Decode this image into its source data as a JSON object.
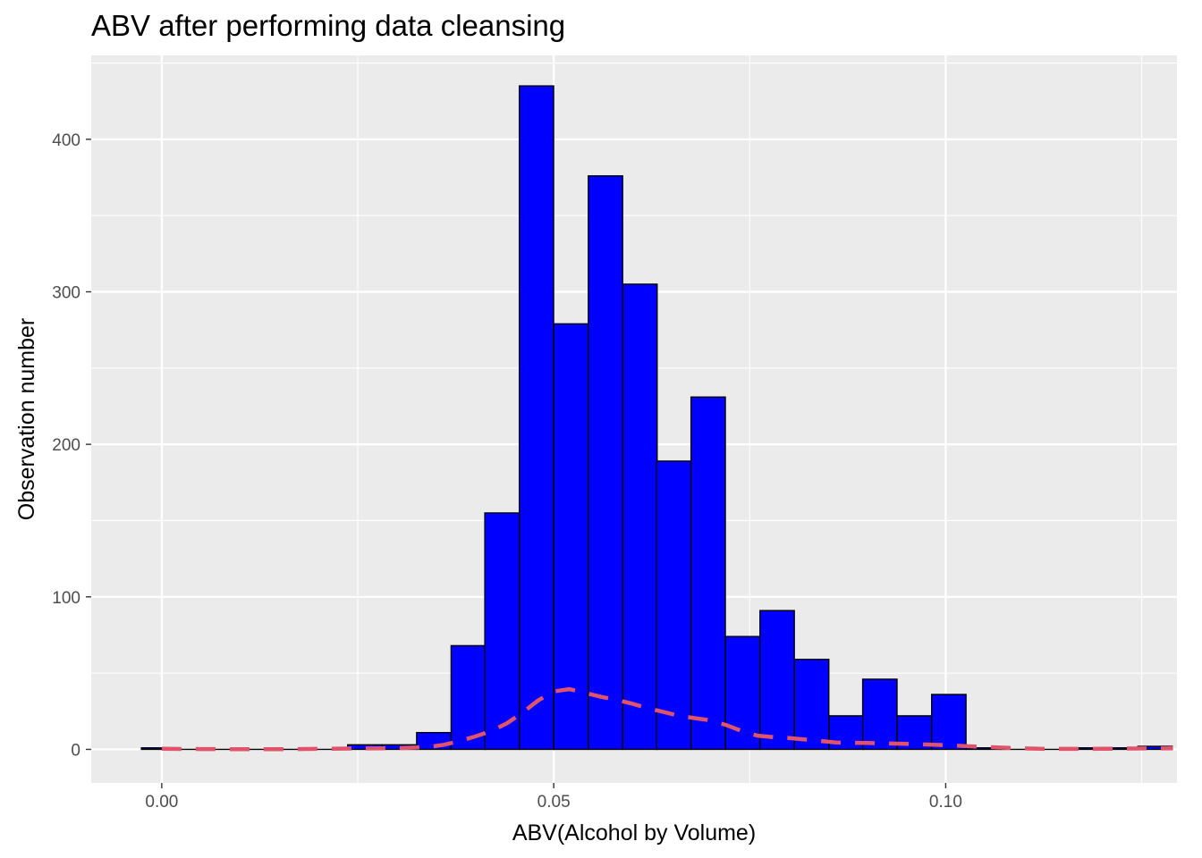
{
  "chart_data": {
    "type": "bar",
    "title": "ABV after performing data cleansing",
    "xlabel": "ABV(Alcohol by Volume)",
    "ylabel": "Observation number",
    "xlim": [
      -0.009,
      0.1295
    ],
    "ylim": [
      -22,
      455
    ],
    "x_ticks": [
      0.0,
      0.05,
      0.1
    ],
    "x_tick_labels": [
      "0.00",
      "0.05",
      "0.10"
    ],
    "y_ticks": [
      0,
      100,
      200,
      300,
      400
    ],
    "y_tick_labels": [
      "0",
      "100",
      "200",
      "300",
      "400"
    ],
    "grid": true,
    "bin_width": 0.00438,
    "bins": [
      {
        "x": -0.0004,
        "count": 1
      },
      {
        "x": 0.004,
        "count": 0
      },
      {
        "x": 0.0084,
        "count": 0
      },
      {
        "x": 0.0128,
        "count": 0
      },
      {
        "x": 0.0171,
        "count": 0
      },
      {
        "x": 0.0215,
        "count": 0
      },
      {
        "x": 0.0259,
        "count": 3
      },
      {
        "x": 0.0303,
        "count": 3
      },
      {
        "x": 0.0347,
        "count": 11
      },
      {
        "x": 0.0391,
        "count": 68
      },
      {
        "x": 0.0434,
        "count": 155
      },
      {
        "x": 0.0478,
        "count": 435
      },
      {
        "x": 0.0522,
        "count": 279
      },
      {
        "x": 0.0566,
        "count": 376
      },
      {
        "x": 0.061,
        "count": 305
      },
      {
        "x": 0.0653,
        "count": 189
      },
      {
        "x": 0.0697,
        "count": 231
      },
      {
        "x": 0.0741,
        "count": 74
      },
      {
        "x": 0.0785,
        "count": 91
      },
      {
        "x": 0.0829,
        "count": 59
      },
      {
        "x": 0.0873,
        "count": 22
      },
      {
        "x": 0.0916,
        "count": 46
      },
      {
        "x": 0.096,
        "count": 22
      },
      {
        "x": 0.1004,
        "count": 36
      },
      {
        "x": 0.1048,
        "count": 1
      },
      {
        "x": 0.1092,
        "count": 0
      },
      {
        "x": 0.1135,
        "count": 0
      },
      {
        "x": 0.1179,
        "count": 1
      },
      {
        "x": 0.1223,
        "count": 1
      },
      {
        "x": 0.1267,
        "count": 2
      }
    ],
    "density_curve": {
      "x": [
        0.0,
        0.005,
        0.01,
        0.015,
        0.02,
        0.025,
        0.03,
        0.034,
        0.036,
        0.038,
        0.04,
        0.042,
        0.044,
        0.046,
        0.048,
        0.05,
        0.052,
        0.054,
        0.056,
        0.058,
        0.06,
        0.062,
        0.064,
        0.066,
        0.068,
        0.07,
        0.072,
        0.074,
        0.076,
        0.078,
        0.08,
        0.083,
        0.086,
        0.09,
        0.095,
        0.1,
        0.104,
        0.108,
        0.112,
        0.116,
        0.12,
        0.125,
        0.129
      ],
      "y": [
        0.4,
        0.2,
        0.1,
        0.1,
        0.3,
        0.6,
        0.8,
        1.5,
        3,
        5.5,
        8.5,
        12,
        17,
        24,
        32,
        38,
        39.5,
        37,
        34.5,
        32.5,
        30,
        27,
        24.5,
        22,
        20.5,
        19,
        16,
        12,
        9,
        8,
        7.5,
        6,
        4.5,
        4.2,
        3.6,
        2.8,
        1.8,
        1,
        0.4,
        0.3,
        0.4,
        0.6,
        0.7
      ],
      "color": "#DF536B",
      "style": "dashed"
    },
    "colors": {
      "bar_fill": "#0000FF",
      "bar_outline": "#000000",
      "panel_background": "#EBEBEB",
      "grid": "#FFFFFF"
    }
  }
}
